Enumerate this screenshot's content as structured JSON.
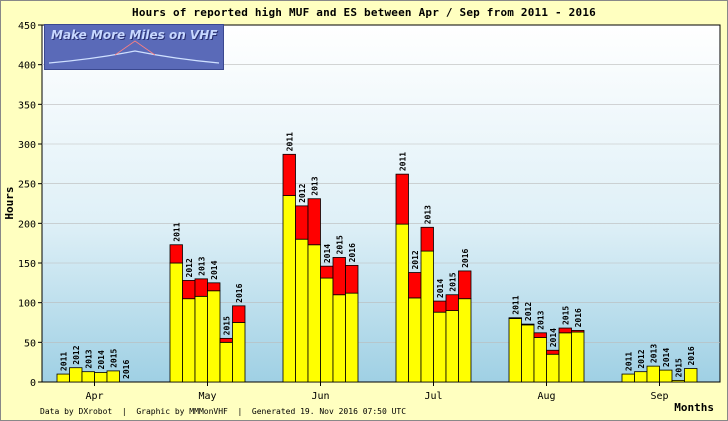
{
  "chart_data": {
    "type": "bar",
    "title": "Hours of reported high MUF and ES between Apr / Sep from 2011 - 2016",
    "ylabel": "Hours",
    "xlabel": "Months",
    "ylim": [
      0,
      450
    ],
    "yticks": [
      0,
      50,
      100,
      150,
      200,
      250,
      300,
      350,
      400,
      450
    ],
    "grid": true,
    "categories": [
      "Apr",
      "May",
      "Jun",
      "Jul",
      "Aug",
      "Sep"
    ],
    "years": [
      "2011",
      "2012",
      "2013",
      "2014",
      "2015",
      "2016"
    ],
    "series": [
      {
        "name": "high MUF",
        "color": "#ffff00",
        "values": [
          [
            10,
            18,
            13,
            12,
            14,
            0
          ],
          [
            150,
            105,
            108,
            115,
            50,
            75
          ],
          [
            235,
            180,
            173,
            131,
            110,
            112
          ],
          [
            199,
            106,
            165,
            88,
            90,
            105
          ],
          [
            80,
            72,
            56,
            35,
            62,
            63
          ],
          [
            10,
            13,
            20,
            15,
            2,
            17
          ]
        ]
      },
      {
        "name": "ES",
        "color": "#ff0000",
        "values": [
          [
            0,
            0,
            0,
            0,
            0,
            0
          ],
          [
            23,
            23,
            22,
            10,
            5,
            21
          ],
          [
            52,
            42,
            58,
            15,
            47,
            35
          ],
          [
            63,
            32,
            30,
            14,
            20,
            35
          ],
          [
            1,
            1,
            6,
            5,
            6,
            2
          ],
          [
            0,
            0,
            0,
            0,
            0,
            0
          ]
        ]
      }
    ]
  },
  "logo": {
    "text": "Make More Miles on VHF"
  },
  "footer": {
    "text": "Data by DXrobot  |  Graphic by MMMonVHF  |  Generated 19. Nov 2016 07:50 UTC"
  }
}
